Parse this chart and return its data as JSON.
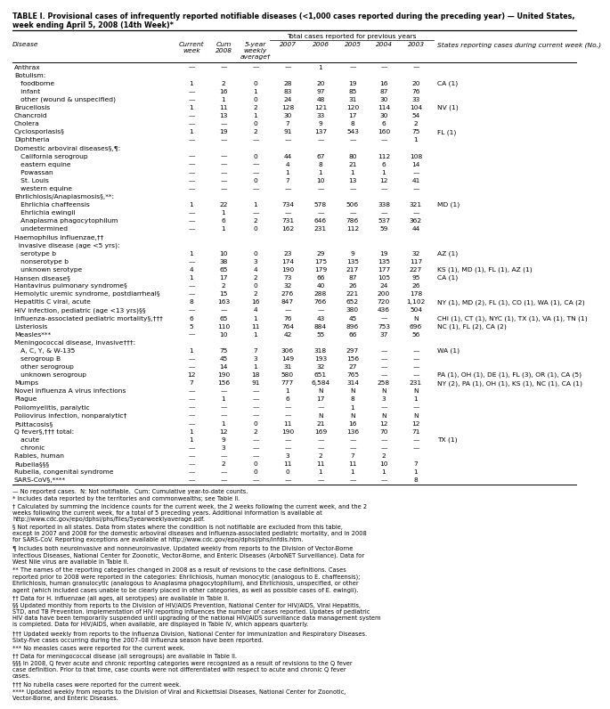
{
  "title_line1": "TABLE I. Provisional cases of infrequently reported notifiable diseases (<1,000 cases reported during the preceding year) — United States,",
  "title_line2": "week ending April 5, 2008 (14th Week)*",
  "rows": [
    [
      "Anthrax",
      "—",
      "—",
      "—",
      "—",
      "1",
      "—",
      "—",
      "—",
      ""
    ],
    [
      "Botulism:",
      "",
      "",
      "",
      "",
      "",
      "",
      "",
      "",
      ""
    ],
    [
      "   foodborne",
      "1",
      "2",
      "0",
      "28",
      "20",
      "19",
      "16",
      "20",
      "CA (1)"
    ],
    [
      "   infant",
      "—",
      "16",
      "1",
      "83",
      "97",
      "85",
      "87",
      "76",
      ""
    ],
    [
      "   other (wound & unspecified)",
      "—",
      "1",
      "0",
      "24",
      "48",
      "31",
      "30",
      "33",
      ""
    ],
    [
      "Brucellosis",
      "1",
      "11",
      "2",
      "128",
      "121",
      "120",
      "114",
      "104",
      "NV (1)"
    ],
    [
      "Chancroid",
      "—",
      "13",
      "1",
      "30",
      "33",
      "17",
      "30",
      "54",
      ""
    ],
    [
      "Cholera",
      "—",
      "—",
      "0",
      "7",
      "9",
      "8",
      "6",
      "2",
      ""
    ],
    [
      "Cyclosporiasis§",
      "1",
      "19",
      "2",
      "91",
      "137",
      "543",
      "160",
      "75",
      "FL (1)"
    ],
    [
      "Diphtheria",
      "—",
      "—",
      "—",
      "—",
      "—",
      "—",
      "—",
      "1",
      ""
    ],
    [
      "Domestic arboviral diseases§,¶:",
      "",
      "",
      "",
      "",
      "",
      "",
      "",
      "",
      ""
    ],
    [
      "   California serogroup",
      "—",
      "—",
      "0",
      "44",
      "67",
      "80",
      "112",
      "108",
      ""
    ],
    [
      "   eastern equine",
      "—",
      "—",
      "—",
      "4",
      "8",
      "21",
      "6",
      "14",
      ""
    ],
    [
      "   Powassan",
      "—",
      "—",
      "—",
      "1",
      "1",
      "1",
      "1",
      "—",
      ""
    ],
    [
      "   St. Louis",
      "—",
      "—",
      "0",
      "7",
      "10",
      "13",
      "12",
      "41",
      ""
    ],
    [
      "   western equine",
      "—",
      "—",
      "—",
      "—",
      "—",
      "—",
      "—",
      "—",
      ""
    ],
    [
      "Ehrlichiosis/Anaplasmosis§,**:",
      "",
      "",
      "",
      "",
      "",
      "",
      "",
      "",
      ""
    ],
    [
      "   Ehrlichia chaffeensis",
      "1",
      "22",
      "1",
      "734",
      "578",
      "506",
      "338",
      "321",
      "MD (1)"
    ],
    [
      "   Ehrlichia ewingii",
      "—",
      "1",
      "—",
      "—",
      "—",
      "—",
      "—",
      "—",
      ""
    ],
    [
      "   Anaplasma phagocytophilum",
      "—",
      "6",
      "2",
      "731",
      "646",
      "786",
      "537",
      "362",
      ""
    ],
    [
      "   undetermined",
      "—",
      "1",
      "0",
      "162",
      "231",
      "112",
      "59",
      "44",
      ""
    ],
    [
      "Haemophilus influenzae,††",
      "",
      "",
      "",
      "",
      "",
      "",
      "",
      "",
      ""
    ],
    [
      "  invasive disease (age <5 yrs):",
      "",
      "",
      "",
      "",
      "",
      "",
      "",
      "",
      ""
    ],
    [
      "   serotype b",
      "1",
      "10",
      "0",
      "23",
      "29",
      "9",
      "19",
      "32",
      "AZ (1)"
    ],
    [
      "   nonserotype b",
      "—",
      "38",
      "3",
      "174",
      "175",
      "135",
      "135",
      "117",
      ""
    ],
    [
      "   unknown serotype",
      "4",
      "65",
      "4",
      "190",
      "179",
      "217",
      "177",
      "227",
      "KS (1), MD (1), FL (1), AZ (1)"
    ],
    [
      "Hansen disease§",
      "1",
      "17",
      "2",
      "73",
      "66",
      "87",
      "105",
      "95",
      "CA (1)"
    ],
    [
      "Hantavirus pulmonary syndrome§",
      "—",
      "2",
      "0",
      "32",
      "40",
      "26",
      "24",
      "26",
      ""
    ],
    [
      "Hemolytic uremic syndrome, postdiarrheal§",
      "—",
      "15",
      "2",
      "276",
      "288",
      "221",
      "200",
      "178",
      ""
    ],
    [
      "Hepatitis C viral, acute",
      "8",
      "163",
      "16",
      "847",
      "766",
      "652",
      "720",
      "1,102",
      "NY (1), MD (2), FL (1), CO (1), WA (1), CA (2)"
    ],
    [
      "HIV infection, pediatric (age <13 yrs)§§",
      "—",
      "—",
      "4",
      "—",
      "—",
      "380",
      "436",
      "504",
      ""
    ],
    [
      "Influenza-associated pediatric mortality§,†††",
      "6",
      "65",
      "1",
      "76",
      "43",
      "45",
      "—",
      "N",
      "CHI (1), CT (1), NYC (1), TX (1), VA (1), TN (1)"
    ],
    [
      "Listeriosis",
      "5",
      "110",
      "11",
      "764",
      "884",
      "896",
      "753",
      "696",
      "NC (1), FL (2), CA (2)"
    ],
    [
      "Measles***",
      "—",
      "10",
      "1",
      "42",
      "55",
      "66",
      "37",
      "56",
      ""
    ],
    [
      "Meningococcal disease, invasive†††:",
      "",
      "",
      "",
      "",
      "",
      "",
      "",
      "",
      ""
    ],
    [
      "   A, C, Y, & W-135",
      "1",
      "75",
      "7",
      "306",
      "318",
      "297",
      "—",
      "—",
      "WA (1)"
    ],
    [
      "   serogroup B",
      "—",
      "45",
      "3",
      "149",
      "193",
      "156",
      "—",
      "—",
      ""
    ],
    [
      "   other serogroup",
      "—",
      "14",
      "1",
      "31",
      "32",
      "27",
      "—",
      "—",
      ""
    ],
    [
      "   unknown serogroup",
      "12",
      "190",
      "18",
      "580",
      "651",
      "765",
      "—",
      "—",
      "PA (1), OH (1), DE (1), FL (3), OR (1), CA (5)"
    ],
    [
      "Mumps",
      "7",
      "156",
      "91",
      "777",
      "6,584",
      "314",
      "258",
      "231",
      "NY (2), PA (1), OH (1), KS (1), NC (1), CA (1)"
    ],
    [
      "Novel influenza A virus infections",
      "—",
      "—",
      "—",
      "1",
      "N",
      "N",
      "N",
      "N",
      ""
    ],
    [
      "Plague",
      "—",
      "1",
      "—",
      "6",
      "17",
      "8",
      "3",
      "1",
      ""
    ],
    [
      "Poliomyelitis, paralytic",
      "—",
      "—",
      "—",
      "—",
      "—",
      "1",
      "—",
      "—",
      ""
    ],
    [
      "Poliovirus infection, nonparalytic†",
      "—",
      "—",
      "—",
      "—",
      "N",
      "N",
      "N",
      "N",
      ""
    ],
    [
      "Psittacosis§",
      "—",
      "1",
      "0",
      "11",
      "21",
      "16",
      "12",
      "12",
      ""
    ],
    [
      "Q fever§,††† total:",
      "1",
      "12",
      "2",
      "190",
      "169",
      "136",
      "70",
      "71",
      ""
    ],
    [
      "   acute",
      "1",
      "9",
      "—",
      "—",
      "—",
      "—",
      "—",
      "—",
      "TX (1)"
    ],
    [
      "   chronic",
      "—",
      "3",
      "—",
      "—",
      "—",
      "—",
      "—",
      "—",
      ""
    ],
    [
      "Rabies, human",
      "—",
      "—",
      "—",
      "3",
      "2",
      "7",
      "2",
      "",
      ""
    ],
    [
      "Rubella§§§",
      "—",
      "2",
      "0",
      "11",
      "11",
      "11",
      "10",
      "7",
      ""
    ],
    [
      "Rubella, congenital syndrome",
      "—",
      "—",
      "0",
      "0",
      "1",
      "1",
      "1",
      "1",
      ""
    ],
    [
      "SARS-CoV§,****",
      "—",
      "—",
      "—",
      "—",
      "—",
      "—",
      "—",
      "8",
      ""
    ]
  ],
  "footnotes": [
    "— No reported cases.  N: Not notifiable.  Cum: Cumulative year-to-date counts.",
    "* Includes data reported by the territories and commonwealths; see Table II.",
    "† Calculated by summing the incidence counts for the current week, the 2 weeks following the current week, and the 2 weeks following the current week, for a total of 5 preceding years. Additional information is available at http://www.cdc.gov/epo/dphsi/phs/files/5yearweeklyaverage.pdf.",
    "§ Not reported in all states. Data from states where the condition is not notifiable are excluded from this table, except in 2007 and 2008 for the domestic arboviral diseases and influenza-associated pediatric mortality, and in 2008 for SARS-CoV. Reporting exceptions are available at http://www.cdc.gov/epo/dphsi/phs/infdis.htm.",
    "¶ Includes both neuroinvasive and nonneuroinvasive. Updated weekly from reports to the Division of Vector-Borne Infectious Diseases, National Center for Zoonotic, Vector-Borne, and Enteric Diseases (ArboNET Surveillance). Data for West Nile virus are available in Table II.",
    "** The names of the reporting categories changed in 2008 as a result of revisions to the case definitions. Cases reported prior to 2008 were reported in the categories: Ehrlichiosis, human monocytic (analogous to E. chaffeensis); Ehrlichiosis, human granulocytic (analogous to Anaplasma phagocytophilum), and Ehrlichiosis, unspecified, or other agent (which included cases unable to be clearly placed in other categories, as well as possible cases of E. ewingii).",
    "†† Data for H. influenzae (all ages, all serotypes) are available in Table II.",
    "§§ Updated monthly from reports to the Division of HIV/AIDS Prevention, National Center for HIV/AIDS, Viral Hepatitis, STD, and TB Prevention. Implementation of HIV reporting influences the number of cases reported. Updates of pediatric HIV data have been temporarily suspended until upgrading of the national HIV/AIDS surveillance data management system is completed. Data for HIV/AIDS, when available, are displayed in Table IV, which appears quarterly.",
    "††† Updated weekly from reports to the Influenza Division, National Center for Immunization and Respiratory Diseases. Sixty-five cases occurring during the 2007–08 influenza season have been reported.",
    "*** No measles cases were reported for the current week.",
    "†† Data for meningococcal disease (all serogroups) are available in Table II.",
    "§§§ In 2008, Q fever acute and chronic reporting categories were recognized as a result of revisions to the Q fever case definition. Prior to that time, case counts were not differentiated with respect to acute and chronic Q fever cases.",
    "††† No rubella cases were reported for the current week.",
    "**** Updated weekly from reports to the Division of Viral and Rickettsial Diseases, National Center for Zoonotic, Vector-Borne, and Enteric Diseases."
  ]
}
